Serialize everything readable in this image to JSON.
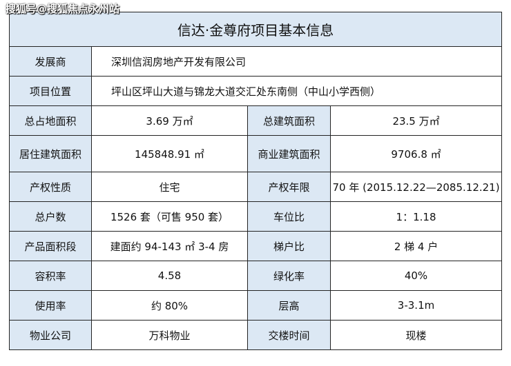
{
  "watermark": "搜狐号@搜狐焦点永州站",
  "title": "信达·金尊府项目基本信息",
  "colors": {
    "label_bg": "#dce8f4",
    "border": "#222222"
  },
  "full_rows": [
    {
      "label": "发展商",
      "value": "深圳信润房地产开发有限公司"
    },
    {
      "label": "项目位置",
      "value": "坪山区坪山大道与锦龙大道交汇处东南侧（中山小学西侧）"
    }
  ],
  "rows": [
    {
      "l1": "总占地面积",
      "v1": "3.69 万㎡",
      "l2": "总建筑面积",
      "v2": "23.5 万㎡"
    },
    {
      "l1": "居住建筑面积",
      "v1": "145848.91 ㎡",
      "l2": "商业建筑面积",
      "v2": "9706.8 ㎡"
    },
    {
      "l1": "产权性质",
      "v1": "住宅",
      "l2": "产权年限",
      "v2": "70 年 (2015.12.22—2085.12.21)"
    },
    {
      "l1": "总户数",
      "v1": "1526 套（可售 950 套）",
      "l2": "车位比",
      "v2": "1：1.18"
    },
    {
      "l1": "产品面积段",
      "v1": "建面约 94-143 ㎡ 3-4 房",
      "l2": "梯户比",
      "v2": "2 梯 4 户"
    },
    {
      "l1": "容积率",
      "v1": "4.58",
      "l2": "绿化率",
      "v2": "40%"
    },
    {
      "l1": "使用率",
      "v1": "约 80%",
      "l2": "层高",
      "v2": "3-3.1m"
    },
    {
      "l1": "物业公司",
      "v1": "万科物业",
      "l2": "交楼时间",
      "v2": "现楼"
    }
  ]
}
